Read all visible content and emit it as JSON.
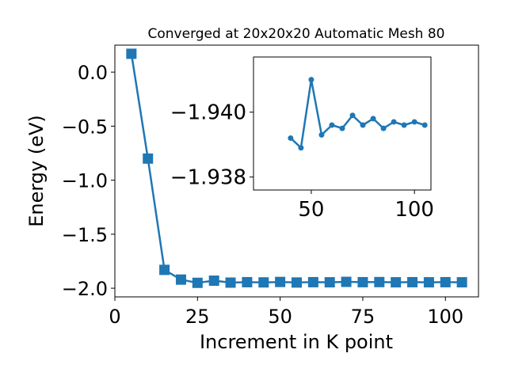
{
  "chart_data": [
    {
      "type": "line",
      "title": "Converged at 20x20x20 Automatic Mesh 80",
      "xlabel": "Increment in K point",
      "ylabel": "Energy (eV)",
      "xlim": [
        0,
        110
      ],
      "ylim": [
        -2.08,
        0.25
      ],
      "x_ticks": [
        0,
        25,
        50,
        75,
        100
      ],
      "y_ticks": [
        0.0,
        -0.5,
        -1.0,
        -1.5,
        -2.0
      ],
      "x_tick_labels": [
        "0",
        "25",
        "50",
        "75",
        "100"
      ],
      "y_tick_labels": [
        "0.0",
        "−0.5",
        "−1.0",
        "−1.5",
        "−2.0"
      ],
      "grid": false,
      "color": "#1f77b4",
      "marker": "square",
      "x": [
        5,
        10,
        15,
        20,
        25,
        30,
        35,
        40,
        45,
        50,
        55,
        60,
        65,
        70,
        75,
        80,
        85,
        90,
        95,
        100,
        105
      ],
      "y": [
        0.17,
        -0.8,
        -1.83,
        -1.92,
        -1.95,
        -1.93,
        -1.948,
        -1.944,
        -1.946,
        -1.942,
        -1.947,
        -1.944,
        -1.945,
        -1.941,
        -1.944,
        -1.943,
        -1.945,
        -1.944,
        -1.945,
        -1.944,
        -1.945
      ]
    },
    {
      "type": "line",
      "title": "",
      "xlabel": "",
      "ylabel": "",
      "xlim": [
        22,
        108
      ],
      "ylim": [
        -1.9376,
        -1.9417
      ],
      "x_ticks": [
        50,
        100
      ],
      "y_ticks": [
        -1.94,
        -1.938
      ],
      "x_tick_labels": [
        "50",
        "100"
      ],
      "y_tick_labels": [
        "−1.940",
        "−1.938"
      ],
      "grid": false,
      "color": "#1f77b4",
      "marker": "circle",
      "x": [
        40,
        45,
        50,
        55,
        60,
        65,
        70,
        75,
        80,
        85,
        90,
        95,
        100,
        105
      ],
      "y": [
        -1.9392,
        -1.9389,
        -1.941,
        -1.9393,
        -1.9396,
        -1.9395,
        -1.9399,
        -1.9396,
        -1.9398,
        -1.9395,
        -1.9397,
        -1.9396,
        -1.9397,
        -1.9396
      ]
    }
  ]
}
